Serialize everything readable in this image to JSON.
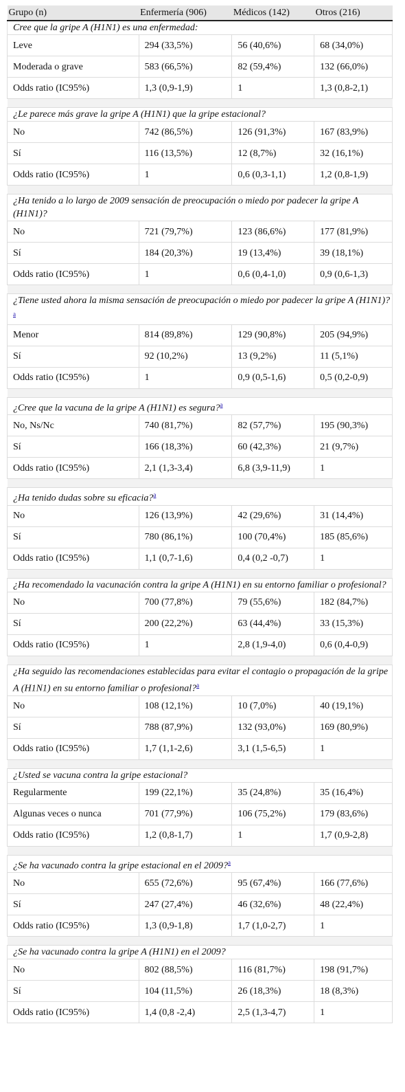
{
  "headers": [
    "Grupo (n)",
    "Enfermería (906)",
    "Médicos (142)",
    "Otros (216)"
  ],
  "footnote_mark": "a",
  "sections": [
    {
      "question": "Cree que la gripe A (H1N1) es una enfermedad:",
      "mark": false,
      "rows": [
        [
          "Leve",
          "294 (33,5%)",
          "56 (40,6%)",
          "68 (34,0%)"
        ],
        [
          "Moderada o grave",
          "583 (66,5%)",
          "82 (59,4%)",
          "132 (66,0%)"
        ],
        [
          "Odds ratio (IC95%)",
          "1,3 (0,9-1,9)",
          "1",
          "1,3 (0,8-2,1)"
        ]
      ]
    },
    {
      "question": "¿Le parece más grave la gripe A (H1N1) que la gripe estacional?",
      "mark": false,
      "rows": [
        [
          "No",
          "742 (86,5%)",
          "126 (91,3%)",
          "167 (83,9%)"
        ],
        [
          "Sí",
          "116 (13,5%)",
          "12 (8,7%)",
          "32 (16,1%)"
        ],
        [
          "Odds ratio (IC95%)",
          "1",
          "0,6 (0,3-1,1)",
          "1,2 (0,8-1,9)"
        ]
      ]
    },
    {
      "question": "¿Ha tenido a lo largo de 2009 sensación de preocupación o miedo por padecer la gripe A (H1N1)?",
      "mark": false,
      "rows": [
        [
          "No",
          "721 (79,7%)",
          "123 (86,6%)",
          "177 (81,9%)"
        ],
        [
          "Sí",
          "184 (20,3%)",
          "19 (13,4%)",
          "39 (18,1%)"
        ],
        [
          "Odds ratio (IC95%)",
          "1",
          "0,6 (0,4-1,0)",
          "0,9 (0,6-1,3)"
        ]
      ]
    },
    {
      "question": "¿Tiene usted ahora la misma sensación de preocupación o miedo por padecer la gripe A (H1N1)?",
      "mark": true,
      "rows": [
        [
          "Menor",
          "814 (89,8%)",
          "129 (90,8%)",
          "205 (94,9%)"
        ],
        [
          "Sí",
          "92 (10,2%)",
          "13 (9,2%)",
          "11 (5,1%)"
        ],
        [
          "Odds ratio (IC95%)",
          "1",
          "0,9 (0,5-1,6)",
          "0,5 (0,2-0,9)"
        ]
      ]
    },
    {
      "question": "¿Cree que la vacuna de la gripe A (H1N1) es segura?",
      "mark": true,
      "rows": [
        [
          "No, Ns/Nc",
          "740 (81,7%)",
          "82 (57,7%)",
          "195 (90,3%)"
        ],
        [
          "Sí",
          "166 (18,3%)",
          "60 (42,3%)",
          "21 (9,7%)"
        ],
        [
          "Odds ratio (IC95%)",
          "2,1 (1,3-3,4)",
          "6,8 (3,9-11,9)",
          "1"
        ]
      ]
    },
    {
      "question": "¿Ha tenido dudas sobre su eficacia?",
      "mark": true,
      "rows": [
        [
          "No",
          "126 (13,9%)",
          "42 (29,6%)",
          "31 (14,4%)"
        ],
        [
          "Sí",
          "780 (86,1%)",
          "100 (70,4%)",
          "185 (85,6%)"
        ],
        [
          "Odds ratio (IC95%)",
          "1,1 (0,7-1,6)",
          "0,4 (0,2 -0,7)",
          "1"
        ]
      ]
    },
    {
      "question": "¿Ha recomendado la vacunación contra la gripe A (H1N1) en su entorno familiar o profesional?",
      "mark": false,
      "rows": [
        [
          "No",
          "700 (77,8%)",
          "79 (55,6%)",
          "182 (84,7%)"
        ],
        [
          "Sí",
          "200 (22,2%)",
          "63 (44,4%)",
          "33 (15,3%)"
        ],
        [
          "Odds ratio (IC95%)",
          "1",
          "2,8 (1,9-4,0)",
          "0,6 (0,4-0,9)"
        ]
      ]
    },
    {
      "question": "¿Ha seguido las recomendaciones establecidas para evitar el contagio o propagación de la gripe A (H1N1) en su entorno familiar o profesional?",
      "mark": true,
      "rows": [
        [
          "No",
          "108 (12,1%)",
          "10 (7,0%)",
          "40 (19,1%)"
        ],
        [
          "Sí",
          "788 (87,9%)",
          "132 (93,0%)",
          "169 (80,9%)"
        ],
        [
          "Odds ratio (IC95%)",
          "1,7 (1,1-2,6)",
          "3,1 (1,5-6,5)",
          "1"
        ]
      ]
    },
    {
      "question": "¿Usted se vacuna contra la gripe estacional?",
      "mark": false,
      "rows": [
        [
          "Regularmente",
          "199 (22,1%)",
          "35 (24,8%)",
          "35 (16,4%)"
        ],
        [
          "Algunas veces o nunca",
          "701 (77,9%)",
          "106 (75,2%)",
          "179 (83,6%)"
        ],
        [
          "Odds ratio (IC95%)",
          "1,2 (0,8-1,7)",
          "1",
          "1,7 (0,9-2,8)"
        ]
      ]
    },
    {
      "question": "¿Se ha vacunado contra la gripe estacional en el 2009?",
      "mark": true,
      "rows": [
        [
          "No",
          "655 (72,6%)",
          "95 (67,4%)",
          "166 (77,6%)"
        ],
        [
          "Sí",
          "247 (27,4%)",
          "46 (32,6%)",
          "48 (22,4%)"
        ],
        [
          "Odds ratio (IC95%)",
          "1,3 (0,9-1,8)",
          "1,7 (1,0-2,7)",
          "1"
        ]
      ]
    },
    {
      "question": "¿Se ha vacunado contra la gripe A (H1N1) en el 2009?",
      "mark": false,
      "rows": [
        [
          "No",
          "802 (88,5%)",
          "116 (81,7%)",
          "198 (91,7%)"
        ],
        [
          "Sí",
          "104 (11,5%)",
          "26 (18,3%)",
          "18 (8,3%)"
        ],
        [
          "Odds ratio (IC95%)",
          "1,4 (0,8 -2,4)",
          "2,5 (1,3-4,7)",
          "1"
        ]
      ]
    }
  ]
}
